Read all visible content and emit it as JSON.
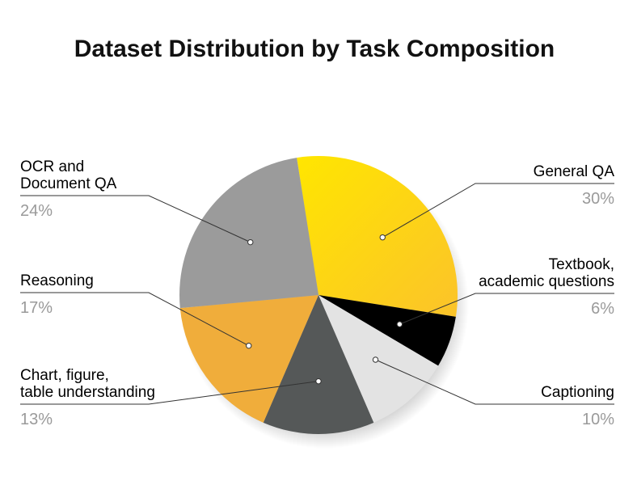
{
  "chart_data": {
    "type": "pie",
    "title": "Dataset Distribution by Task Composition",
    "slices": [
      {
        "label_lines": [
          "General QA"
        ],
        "value": 30,
        "value_label": "30%",
        "color": "#FDD40C",
        "side": "right"
      },
      {
        "label_lines": [
          "Textbook,",
          "academic questions"
        ],
        "value": 6,
        "value_label": "6%",
        "color": "#000000",
        "side": "right"
      },
      {
        "label_lines": [
          "Captioning"
        ],
        "value": 10,
        "value_label": "10%",
        "color": "#E3E3E3",
        "side": "right"
      },
      {
        "label_lines": [
          "Chart, figure,",
          "table understanding"
        ],
        "value": 13,
        "value_label": "13%",
        "color": "#555858",
        "side": "left"
      },
      {
        "label_lines": [
          "Reasoning"
        ],
        "value": 17,
        "value_label": "17%",
        "color": "#F0AD3B",
        "side": "left"
      },
      {
        "label_lines": [
          "OCR and",
          "Document QA"
        ],
        "value": 24,
        "value_label": "24%",
        "color": "#9B9B9B",
        "side": "left"
      }
    ],
    "legend": "callout-labels"
  }
}
